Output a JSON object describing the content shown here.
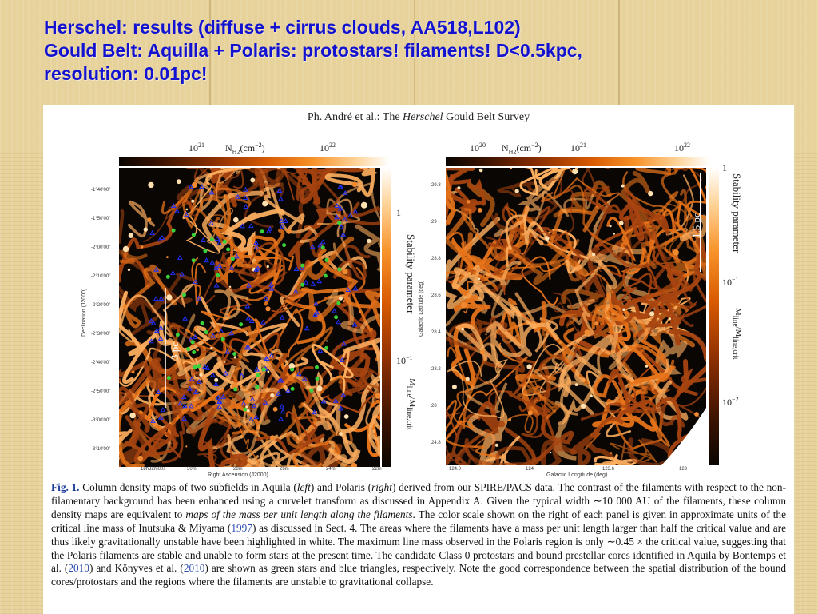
{
  "slide": {
    "title_line1": "Herschel: results (diffuse + cirrus clouds, AA518,L102)",
    "title_line2": "Gould Belt: Aquilla + Polaris: protostars! filaments! D<0.5kpc,",
    "title_line3": "resolution: 0.01pc!"
  },
  "paper": {
    "running_head_prefix": "Ph. André et al.: The ",
    "running_head_italic": "Herschel",
    "running_head_suffix": " Gould Belt Survey",
    "left_panel": {
      "colorbar_min": "10",
      "colorbar_min_exp": "21",
      "colorbar_label": "N",
      "colorbar_label_sub": "H2",
      "colorbar_label_unit": "(cm",
      "colorbar_label_unit_exp": "−2",
      "colorbar_label_close": ")",
      "colorbar_max": "10",
      "colorbar_max_exp": "22",
      "stability_label": "Stability parameter",
      "stability_tick_high": "1",
      "stability_tick_low": "10",
      "stability_tick_low_exp": "−1",
      "mline_label": "M",
      "mline_sub": "line",
      "mline_sep": "/M",
      "mline_sub2": "line,crit",
      "scalebar": "3 pc",
      "y_label": "Declination (J2000)",
      "x_label": "Right Ascension (J2000)",
      "y_ticks": [
        "-1°40'00\"",
        "-1°50'00\"",
        "-2°00'00\"",
        "-2°10'00\"",
        "-2°20'00\"",
        "-2°30'00\"",
        "-2°40'00\"",
        "-2°50'00\"",
        "-3°00'00\"",
        "-3°10'00\""
      ],
      "x_ticks": [
        "18h32m00s",
        "30m",
        "28m",
        "26m",
        "24m",
        "22m"
      ]
    },
    "right_panel": {
      "colorbar_min": "10",
      "colorbar_min_exp": "20",
      "colorbar_label": "N",
      "colorbar_label_sub": "H2",
      "colorbar_label_unit": "(cm",
      "colorbar_label_unit_exp": "−2",
      "colorbar_label_close": ")",
      "colorbar_mid": "10",
      "colorbar_mid_exp": "21",
      "colorbar_max": "10",
      "colorbar_max_exp": "22",
      "stability_label": "Stability parameter",
      "stability_tick_high": "1",
      "stability_tick_mid": "10",
      "stability_tick_mid_exp": "−1",
      "stability_tick_low": "10",
      "stability_tick_low_exp": "−2",
      "mline_label": "M",
      "mline_sub": "line",
      "mline_sep": "/M",
      "mline_sub2": "line,crit",
      "scalebar": "1.5 pc",
      "y_label": "Galactic Latitude (deg)",
      "x_label": "Galactic Longitude (deg)",
      "y_ticks": [
        "29.8",
        "29",
        "28.8",
        "28.6",
        "28.4",
        "28.2",
        "28",
        "24.8"
      ],
      "x_ticks": [
        "124.0",
        "124",
        "123.6",
        "123"
      ]
    },
    "caption": {
      "fig_label": "Fig. 1.",
      "p1": " Column density maps of two subfields in Aquila (",
      "left": "left",
      "p2": ") and Polaris (",
      "right": "right",
      "p3": ") derived from our SPIRE/PACS data. The contrast of the filaments with respect to the non-filamentary background has been enhanced using a curvelet transform as discussed in Appendix A. Given the typical width ∼10 000 AU of the filaments, these column density maps are equivalent to ",
      "italic_phrase": "maps of the mass per unit length along the filaments",
      "p4": ". The color scale shown on the right of each panel is given in approximate units of the critical line mass of Inutsuka & Miyama (",
      "ref1": "1997",
      "p5": ") as discussed in Sect. 4. The areas where the filaments have a mass per unit length larger than half the critical value and are thus likely gravitationally unstable have been highlighted in white. The maximum line mass observed in the Polaris region is only ∼0.45 × the critical value, suggesting that the Polaris filaments are stable and unable to form stars at the present time. The candidate Class 0 protostars and bound prestellar cores identified in Aquila by Bontemps et al. (",
      "ref2": "2010",
      "p6": ") and Könyves et al. (",
      "ref3": "2010",
      "p7": ") are shown as green stars and blue triangles, respectively. Note the good correspondence between the spatial distribution of the bound cores/protostars and the regions where the filaments are unstable to gravitational collapse."
    },
    "colors": {
      "title": "#1212d0",
      "fig_label": "#1d3d9a",
      "filament": "#e8741a",
      "protostar": "#3ad23a",
      "core": "#2030ff"
    }
  }
}
